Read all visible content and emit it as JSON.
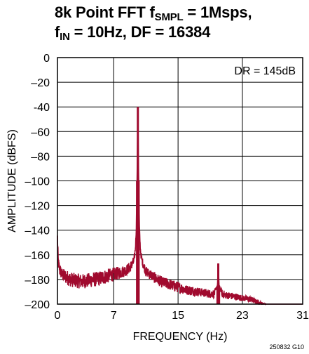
{
  "chart_data": {
    "type": "line",
    "title_line1_prefix": "8k Point FFT f",
    "title_line1_sub": "SMPL",
    "title_line1_suffix": " = 1Msps,",
    "title_line2_prefix": "f",
    "title_line2_sub": "IN",
    "title_line2_suffix": " = 10Hz, DF = 16384",
    "xlabel": "FREQUENCY (Hz)",
    "ylabel": "AMPLITUDE (dBFS)",
    "xlim": [
      0,
      30.5
    ],
    "ylim": [
      -200,
      0
    ],
    "x_ticks": [
      {
        "value": 0,
        "label": "0"
      },
      {
        "value": 7,
        "label": "7"
      },
      {
        "value": 15,
        "label": "15"
      },
      {
        "value": 23,
        "label": "23"
      },
      {
        "value": 30.5,
        "label": "31"
      }
    ],
    "y_ticks": [
      {
        "value": 0,
        "label": "0"
      },
      {
        "value": -20,
        "label": "–20"
      },
      {
        "value": -40,
        "label": "-40"
      },
      {
        "value": -60,
        "label": "–60"
      },
      {
        "value": -80,
        "label": "–80"
      },
      {
        "value": -100,
        "label": "–100"
      },
      {
        "value": -120,
        "label": "–120"
      },
      {
        "value": -140,
        "label": "–140"
      },
      {
        "value": -160,
        "label": "–160"
      },
      {
        "value": -180,
        "label": "–180"
      },
      {
        "value": -200,
        "label": "–200"
      }
    ],
    "grid": true,
    "legend": "none",
    "annotation": "DR = 145dB",
    "figure_id": "250832 G10",
    "series_color": "#a00a2e",
    "series": [
      {
        "x": [
          0,
          0.1,
          0.3,
          0.6,
          1,
          1.5,
          2,
          3,
          4,
          5,
          6,
          7,
          8,
          8.6,
          9,
          9.3,
          9.5,
          9.6,
          9.7,
          9.8,
          9.9,
          10,
          10.1,
          10.2,
          10.3,
          10.4,
          10.6,
          11,
          12,
          13,
          14,
          15,
          16,
          17,
          18,
          19,
          19.5,
          19.9,
          20,
          20.1,
          20.5,
          21,
          22,
          23,
          24,
          24.8,
          25.5,
          26,
          27,
          28,
          29,
          30,
          30.5
        ],
        "y": [
          -148,
          -168,
          -175,
          -178,
          -180,
          -182,
          -183,
          -184,
          -183,
          -182,
          -180,
          -178,
          -176,
          -174,
          -172,
          -169,
          -166,
          -162,
          -155,
          -140,
          -100,
          -40,
          -100,
          -140,
          -155,
          -162,
          -168,
          -175,
          -180,
          -184,
          -186,
          -188,
          -190,
          -191,
          -192,
          -193,
          -193,
          -185,
          -167,
          -185,
          -193,
          -194,
          -195,
          -196,
          -197,
          -199,
          -200,
          -200,
          -200,
          -200,
          -200,
          -200,
          -200
        ],
        "noise_amplitude_db": [
          10,
          10,
          10,
          10,
          12,
          12,
          12,
          12,
          12,
          12,
          12,
          11,
          10,
          9,
          9,
          8,
          7,
          6,
          5,
          4,
          0,
          0,
          0,
          4,
          5,
          6,
          7,
          8,
          9,
          9,
          9,
          9,
          8,
          8,
          7,
          7,
          7,
          0,
          0,
          0,
          7,
          6,
          6,
          5,
          5,
          4,
          2,
          0,
          0,
          0,
          0,
          0,
          0
        ]
      }
    ]
  }
}
